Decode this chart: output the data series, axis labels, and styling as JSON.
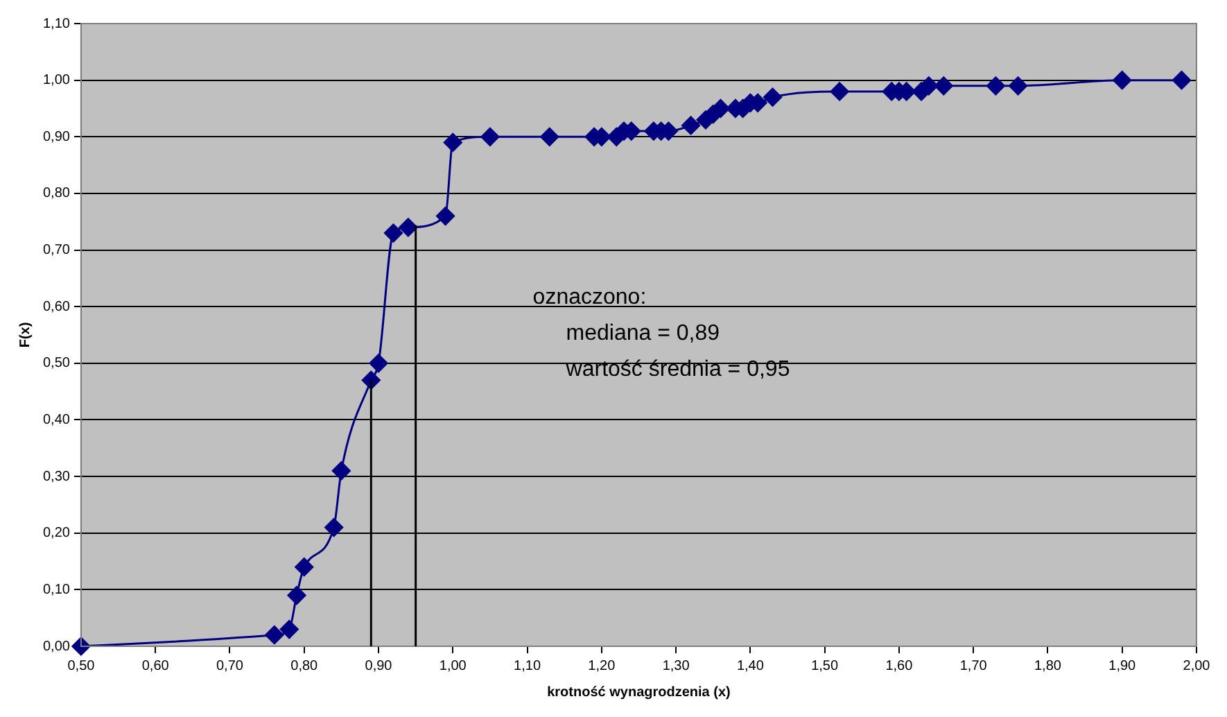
{
  "chart_data": {
    "type": "line",
    "xlabel": "krotność wynagrodzenia (x)",
    "ylabel": "F(x)",
    "annotations": [
      "oznaczono:",
      "mediana = 0,89",
      "wartość średnia = 0,95"
    ],
    "xlim": [
      0.5,
      2.0
    ],
    "xticks": [
      {
        "value": 0.5,
        "label": "0,50"
      },
      {
        "value": 0.6,
        "label": "0,60"
      },
      {
        "value": 0.7,
        "label": "0,70"
      },
      {
        "value": 0.8,
        "label": "0,80"
      },
      {
        "value": 0.9,
        "label": "0,90"
      },
      {
        "value": 1.0,
        "label": "1,00"
      },
      {
        "value": 1.1,
        "label": "1,10"
      },
      {
        "value": 1.2,
        "label": "1,20"
      },
      {
        "value": 1.3,
        "label": "1,30"
      },
      {
        "value": 1.4,
        "label": "1,40"
      },
      {
        "value": 1.5,
        "label": "1,50"
      },
      {
        "value": 1.6,
        "label": "1,60"
      },
      {
        "value": 1.7,
        "label": "1,70"
      },
      {
        "value": 1.8,
        "label": "1,80"
      },
      {
        "value": 1.9,
        "label": "1,90"
      },
      {
        "value": 2.0,
        "label": "2,00"
      }
    ],
    "ylim": [
      0,
      1.1
    ],
    "yticks": [
      {
        "value": 0,
        "label": "0,00"
      },
      {
        "value": 0.1,
        "label": "0,10"
      },
      {
        "value": 0.2,
        "label": "0,20"
      },
      {
        "value": 0.3,
        "label": "0,30"
      },
      {
        "value": 0.4,
        "label": "0,40"
      },
      {
        "value": 0.5,
        "label": "0,50"
      },
      {
        "value": 0.6,
        "label": "0,60"
      },
      {
        "value": 0.7,
        "label": "0,70"
      },
      {
        "value": 0.8,
        "label": "0,80"
      },
      {
        "value": 0.9,
        "label": "0,90"
      },
      {
        "value": 1.0,
        "label": "1,00"
      },
      {
        "value": 1.1,
        "label": "1,10"
      }
    ],
    "grid": "y",
    "marker": "diamond",
    "line_style": "solid",
    "ref_lines": [
      {
        "axis": "x",
        "value": 0.89,
        "color": "#000000"
      },
      {
        "axis": "x",
        "value": 0.95,
        "color": "#000000"
      }
    ],
    "series": [
      {
        "color": "#000080",
        "x": [
          0.5,
          0.76,
          0.78,
          0.79,
          0.8,
          0.84,
          0.85,
          0.89,
          0.9,
          0.92,
          0.94,
          0.99,
          1.0,
          1.05,
          1.13,
          1.19,
          1.2,
          1.22,
          1.23,
          1.24,
          1.27,
          1.28,
          1.29,
          1.32,
          1.34,
          1.35,
          1.36,
          1.38,
          1.39,
          1.4,
          1.41,
          1.43,
          1.52,
          1.59,
          1.6,
          1.61,
          1.63,
          1.64,
          1.66,
          1.73,
          1.76,
          1.9,
          1.98
        ],
        "values": [
          0.0,
          0.02,
          0.03,
          0.09,
          0.14,
          0.21,
          0.31,
          0.47,
          0.5,
          0.73,
          0.74,
          0.76,
          0.89,
          0.9,
          0.9,
          0.9,
          0.9,
          0.9,
          0.91,
          0.91,
          0.91,
          0.91,
          0.91,
          0.92,
          0.93,
          0.94,
          0.95,
          0.95,
          0.95,
          0.96,
          0.96,
          0.97,
          0.98,
          0.98,
          0.98,
          0.98,
          0.98,
          0.99,
          0.99,
          0.99,
          0.99,
          1.0,
          1.0
        ]
      }
    ]
  }
}
